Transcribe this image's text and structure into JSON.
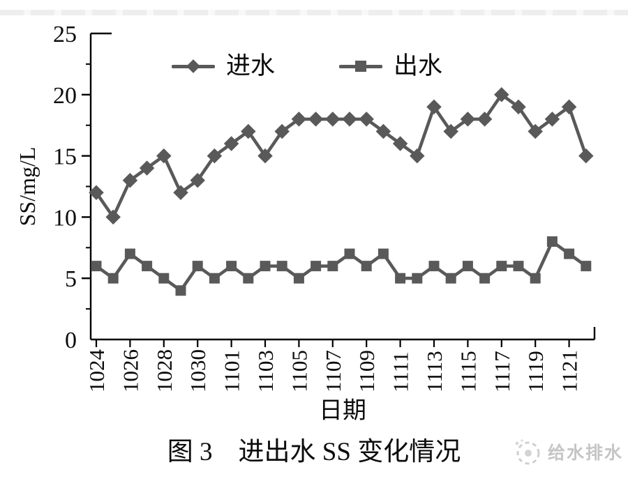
{
  "chart_data": {
    "type": "line",
    "title": "",
    "xlabel": "日期",
    "ylabel": "SS/mg/L",
    "ylim": [
      0,
      25
    ],
    "y_major_ticks": [
      0,
      5,
      10,
      15,
      20,
      25
    ],
    "y_minor_step": 2.5,
    "grid": false,
    "legend_position": "top-center",
    "series_color": "#595959",
    "axis_color": "#000000",
    "x": [
      "1024",
      "1025",
      "1026",
      "1027",
      "1028",
      "1029",
      "1030",
      "1031",
      "1101",
      "1102",
      "1103",
      "1104",
      "1105",
      "1106",
      "1107",
      "1108",
      "1109",
      "1110",
      "1111",
      "1112",
      "1113",
      "1114",
      "1115",
      "1116",
      "1117",
      "1118",
      "1119",
      "1120",
      "1121",
      "1122"
    ],
    "x_tick_labels": [
      "1024",
      "1026",
      "1028",
      "1030",
      "1101",
      "1103",
      "1105",
      "1107",
      "1109",
      "1111",
      "1113",
      "1115",
      "1117",
      "1119",
      "1121"
    ],
    "series": [
      {
        "name": "进水",
        "marker": "diamond",
        "values": [
          12,
          10,
          13,
          14,
          15,
          12,
          13,
          15,
          16,
          17,
          15,
          17,
          18,
          18,
          18,
          18,
          18,
          17,
          16,
          15,
          19,
          17,
          18,
          18,
          20,
          19,
          17,
          18,
          19,
          15
        ]
      },
      {
        "name": "出水",
        "marker": "square",
        "values": [
          6,
          5,
          7,
          6,
          5,
          4,
          6,
          5,
          6,
          5,
          6,
          6,
          5,
          6,
          6,
          7,
          6,
          7,
          5,
          5,
          6,
          5,
          6,
          5,
          6,
          6,
          5,
          8,
          7,
          6
        ]
      }
    ]
  },
  "caption": {
    "text": "图 3　进出水 SS 变化情况"
  },
  "watermark": {
    "text": "给水排水",
    "icon": "water-drop-logo",
    "color": "#c5c5c5"
  }
}
